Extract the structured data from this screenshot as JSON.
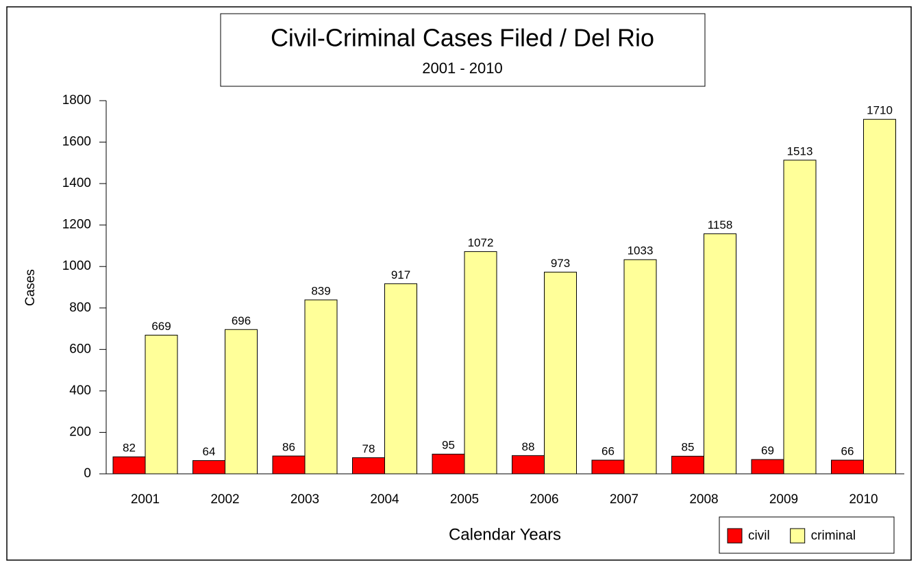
{
  "chart_data": {
    "type": "bar",
    "title": "Civil-Criminal Cases Filed / Del Rio",
    "subtitle": "2001 - 2010",
    "x_label": "Calendar Years",
    "y_label": "Cases",
    "categories": [
      "2001",
      "2002",
      "2003",
      "2004",
      "2005",
      "2006",
      "2007",
      "2008",
      "2009",
      "2010"
    ],
    "series": [
      {
        "name": "civil",
        "color": "#ff0000",
        "values": [
          82,
          64,
          86,
          78,
          95,
          88,
          66,
          85,
          69,
          66
        ]
      },
      {
        "name": "criminal",
        "color": "#ffff99",
        "values": [
          669,
          696,
          839,
          917,
          1072,
          973,
          1033,
          1158,
          1513,
          1710
        ]
      }
    ],
    "ylim": [
      0,
      1800
    ],
    "yticks": [
      0,
      200,
      400,
      600,
      800,
      1000,
      1200,
      1400,
      1600,
      1800
    ],
    "grid": false,
    "legend": "bottom-right"
  }
}
